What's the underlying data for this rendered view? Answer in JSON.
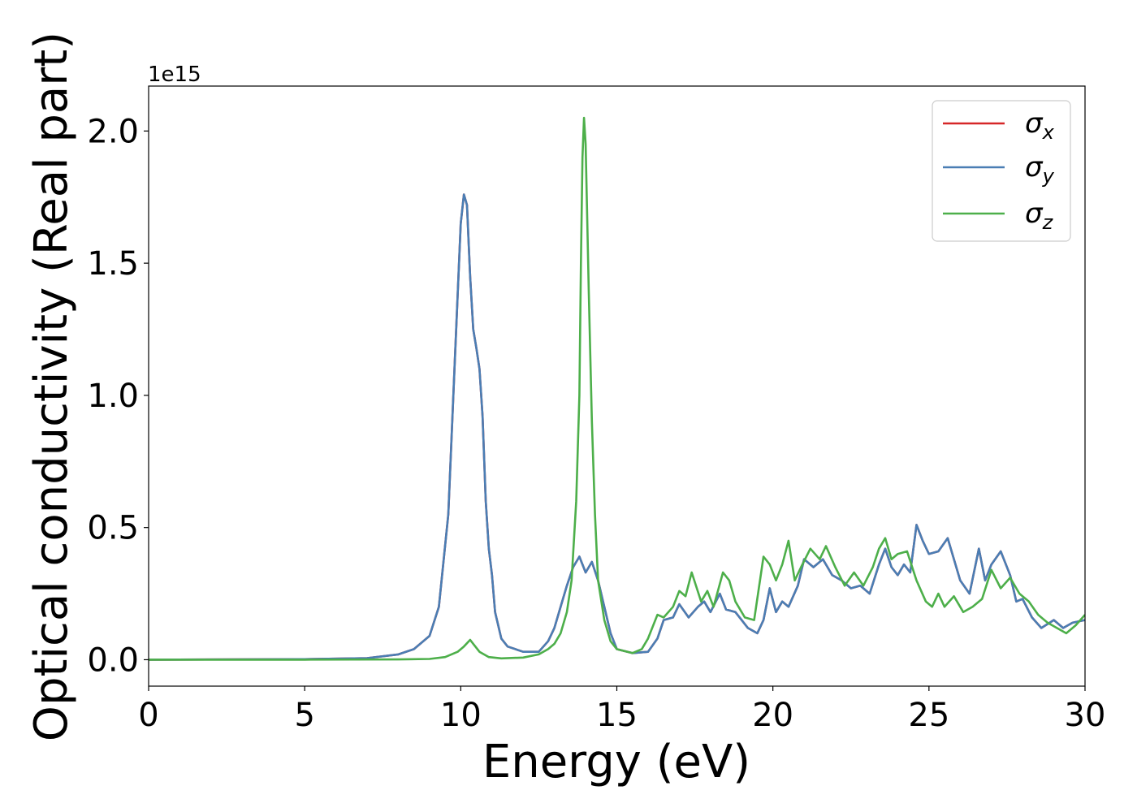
{
  "chart_data": {
    "type": "line",
    "xlabel": "Energy (eV)",
    "ylabel": "Optical conductivity (Real part)",
    "y_offset_label": "1e15",
    "xlim": [
      0,
      30
    ],
    "ylim": [
      -0.1,
      2.17
    ],
    "y_scale_factor": 1000000000000000.0,
    "x_ticks": [
      0,
      5,
      10,
      15,
      20,
      25,
      30
    ],
    "x_tick_labels": [
      "0",
      "5",
      "10",
      "15",
      "20",
      "25",
      "30"
    ],
    "y_ticks": [
      0.0,
      0.5,
      1.0,
      1.5,
      2.0
    ],
    "y_tick_labels": [
      "0.0",
      "0.5",
      "1.0",
      "1.5",
      "2.0"
    ],
    "grid": false,
    "legend_position": "top-right",
    "colors": {
      "sigma_x": "#d62728",
      "sigma_y": "#4a7eb4",
      "sigma_z": "#4daf4a"
    },
    "series": [
      {
        "name": "σx",
        "symbol": "σ",
        "subscript": "x",
        "color": "#d62728",
        "x": [
          0,
          5,
          7,
          8,
          8.5,
          9,
          9.3,
          9.6,
          9.8,
          10.0,
          10.1,
          10.2,
          10.3,
          10.4,
          10.5,
          10.6,
          10.7,
          10.8,
          10.9,
          11.0,
          11.1,
          11.3,
          11.5,
          12.0,
          12.5,
          12.8,
          13.0,
          13.2,
          13.4,
          13.6,
          13.8,
          14.0,
          14.2,
          14.4,
          14.6,
          14.8,
          15.0,
          15.5,
          16.0,
          16.3,
          16.5,
          16.8,
          17.0,
          17.3,
          17.6,
          17.8,
          18.0,
          18.3,
          18.5,
          18.8,
          19.2,
          19.5,
          19.7,
          19.9,
          20.1,
          20.3,
          20.5,
          20.8,
          21.0,
          21.3,
          21.6,
          21.9,
          22.2,
          22.5,
          22.8,
          23.1,
          23.4,
          23.6,
          23.8,
          24.0,
          24.2,
          24.4,
          24.6,
          24.8,
          25.0,
          25.3,
          25.6,
          25.8,
          26.0,
          26.3,
          26.6,
          26.8,
          27.0,
          27.3,
          27.6,
          27.8,
          28.0,
          28.3,
          28.6,
          29.0,
          29.3,
          29.6,
          30.0
        ],
        "y": [
          0.0,
          0.002,
          0.006,
          0.02,
          0.04,
          0.09,
          0.2,
          0.55,
          1.1,
          1.65,
          1.76,
          1.72,
          1.45,
          1.25,
          1.18,
          1.1,
          0.92,
          0.6,
          0.42,
          0.32,
          0.18,
          0.08,
          0.05,
          0.03,
          0.03,
          0.07,
          0.12,
          0.2,
          0.28,
          0.35,
          0.39,
          0.33,
          0.37,
          0.3,
          0.2,
          0.1,
          0.04,
          0.025,
          0.03,
          0.08,
          0.15,
          0.16,
          0.21,
          0.16,
          0.2,
          0.22,
          0.18,
          0.25,
          0.19,
          0.18,
          0.12,
          0.1,
          0.15,
          0.27,
          0.18,
          0.22,
          0.2,
          0.28,
          0.38,
          0.35,
          0.38,
          0.32,
          0.3,
          0.27,
          0.28,
          0.25,
          0.36,
          0.42,
          0.35,
          0.32,
          0.36,
          0.33,
          0.51,
          0.45,
          0.4,
          0.41,
          0.46,
          0.38,
          0.3,
          0.25,
          0.42,
          0.3,
          0.36,
          0.41,
          0.32,
          0.22,
          0.23,
          0.16,
          0.12,
          0.15,
          0.12,
          0.14,
          0.15
        ]
      },
      {
        "name": "σy",
        "symbol": "σ",
        "subscript": "y",
        "color": "#4a7eb4",
        "x": [
          0,
          5,
          7,
          8,
          8.5,
          9,
          9.3,
          9.6,
          9.8,
          10.0,
          10.1,
          10.2,
          10.3,
          10.4,
          10.5,
          10.6,
          10.7,
          10.8,
          10.9,
          11.0,
          11.1,
          11.3,
          11.5,
          12.0,
          12.5,
          12.8,
          13.0,
          13.2,
          13.4,
          13.6,
          13.8,
          14.0,
          14.2,
          14.4,
          14.6,
          14.8,
          15.0,
          15.5,
          16.0,
          16.3,
          16.5,
          16.8,
          17.0,
          17.3,
          17.6,
          17.8,
          18.0,
          18.3,
          18.5,
          18.8,
          19.2,
          19.5,
          19.7,
          19.9,
          20.1,
          20.3,
          20.5,
          20.8,
          21.0,
          21.3,
          21.6,
          21.9,
          22.2,
          22.5,
          22.8,
          23.1,
          23.4,
          23.6,
          23.8,
          24.0,
          24.2,
          24.4,
          24.6,
          24.8,
          25.0,
          25.3,
          25.6,
          25.8,
          26.0,
          26.3,
          26.6,
          26.8,
          27.0,
          27.3,
          27.6,
          27.8,
          28.0,
          28.3,
          28.6,
          29.0,
          29.3,
          29.6,
          30.0
        ],
        "y": [
          0.0,
          0.002,
          0.006,
          0.02,
          0.04,
          0.09,
          0.2,
          0.55,
          1.1,
          1.65,
          1.76,
          1.72,
          1.45,
          1.25,
          1.18,
          1.1,
          0.92,
          0.6,
          0.42,
          0.32,
          0.18,
          0.08,
          0.05,
          0.03,
          0.03,
          0.07,
          0.12,
          0.2,
          0.28,
          0.35,
          0.39,
          0.33,
          0.37,
          0.3,
          0.2,
          0.1,
          0.04,
          0.025,
          0.03,
          0.08,
          0.15,
          0.16,
          0.21,
          0.16,
          0.2,
          0.22,
          0.18,
          0.25,
          0.19,
          0.18,
          0.12,
          0.1,
          0.15,
          0.27,
          0.18,
          0.22,
          0.2,
          0.28,
          0.38,
          0.35,
          0.38,
          0.32,
          0.3,
          0.27,
          0.28,
          0.25,
          0.36,
          0.42,
          0.35,
          0.32,
          0.36,
          0.33,
          0.51,
          0.45,
          0.4,
          0.41,
          0.46,
          0.38,
          0.3,
          0.25,
          0.42,
          0.3,
          0.36,
          0.41,
          0.32,
          0.22,
          0.23,
          0.16,
          0.12,
          0.15,
          0.12,
          0.14,
          0.15
        ]
      },
      {
        "name": "σz",
        "symbol": "σ",
        "subscript": "z",
        "color": "#4daf4a",
        "x": [
          0,
          5,
          8,
          9,
          9.5,
          9.9,
          10.1,
          10.3,
          10.4,
          10.6,
          10.9,
          11.3,
          12.0,
          12.5,
          12.8,
          13.0,
          13.2,
          13.4,
          13.55,
          13.7,
          13.8,
          13.85,
          13.9,
          13.95,
          14.0,
          14.1,
          14.2,
          14.3,
          14.4,
          14.6,
          14.8,
          15.0,
          15.5,
          15.8,
          16.0,
          16.3,
          16.5,
          16.8,
          17.0,
          17.2,
          17.4,
          17.7,
          17.9,
          18.1,
          18.4,
          18.6,
          18.8,
          19.1,
          19.4,
          19.7,
          19.9,
          20.1,
          20.3,
          20.5,
          20.7,
          20.9,
          21.2,
          21.5,
          21.7,
          22.0,
          22.3,
          22.6,
          22.9,
          23.2,
          23.4,
          23.6,
          23.8,
          24.0,
          24.3,
          24.6,
          24.9,
          25.1,
          25.3,
          25.5,
          25.8,
          26.1,
          26.4,
          26.7,
          27.0,
          27.3,
          27.6,
          27.9,
          28.2,
          28.5,
          28.8,
          29.1,
          29.4,
          29.7,
          30.0
        ],
        "y": [
          0.0,
          0.0,
          0.001,
          0.003,
          0.01,
          0.03,
          0.05,
          0.075,
          0.06,
          0.03,
          0.01,
          0.005,
          0.008,
          0.02,
          0.04,
          0.06,
          0.1,
          0.18,
          0.3,
          0.6,
          1.0,
          1.5,
          1.9,
          2.05,
          1.95,
          1.4,
          0.9,
          0.55,
          0.3,
          0.15,
          0.07,
          0.04,
          0.025,
          0.04,
          0.08,
          0.17,
          0.16,
          0.2,
          0.26,
          0.24,
          0.33,
          0.22,
          0.26,
          0.2,
          0.33,
          0.3,
          0.22,
          0.16,
          0.15,
          0.39,
          0.36,
          0.3,
          0.36,
          0.45,
          0.3,
          0.35,
          0.42,
          0.38,
          0.43,
          0.35,
          0.28,
          0.33,
          0.28,
          0.35,
          0.42,
          0.46,
          0.38,
          0.4,
          0.41,
          0.3,
          0.22,
          0.2,
          0.25,
          0.2,
          0.24,
          0.18,
          0.2,
          0.23,
          0.34,
          0.27,
          0.31,
          0.25,
          0.22,
          0.17,
          0.14,
          0.12,
          0.1,
          0.13,
          0.17
        ]
      }
    ]
  }
}
